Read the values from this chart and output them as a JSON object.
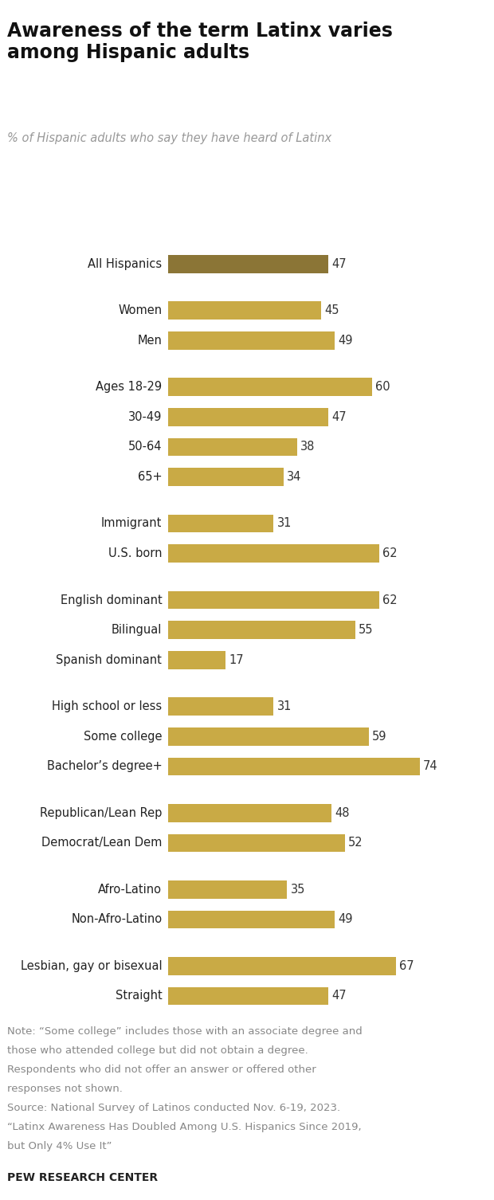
{
  "title": "Awareness of the term Latinx varies\namong Hispanic adults",
  "subtitle": "% of Hispanic adults who say they have heard of Latinx",
  "categories": [
    "All Hispanics",
    "Women",
    "Men",
    "Ages 18-29",
    "30-49",
    "50-64",
    "65+",
    "Immigrant",
    "U.S. born",
    "English dominant",
    "Bilingual",
    "Spanish dominant",
    "High school or less",
    "Some college",
    "Bachelor’s degree+",
    "Republican/Lean Rep",
    "Democrat/Lean Dem",
    "Afro-Latino",
    "Non-Afro-Latino",
    "Lesbian, gay or bisexual",
    "Straight"
  ],
  "values": [
    47,
    45,
    49,
    60,
    47,
    38,
    34,
    31,
    62,
    62,
    55,
    17,
    31,
    59,
    74,
    48,
    52,
    35,
    49,
    67,
    47
  ],
  "bar_color_dark": "#8B7536",
  "bar_color_light": "#C9AA45",
  "groups": [
    [
      0
    ],
    [
      1,
      2
    ],
    [
      3,
      4,
      5,
      6
    ],
    [
      7,
      8
    ],
    [
      9,
      10,
      11
    ],
    [
      12,
      13,
      14
    ],
    [
      15,
      16
    ],
    [
      17,
      18
    ],
    [
      19,
      20
    ]
  ],
  "note_line1": "Note: “Some college” includes those with an associate degree and",
  "note_line2": "those who attended college but did not obtain a degree.",
  "note_line3": "Respondents who did not offer an answer or offered other",
  "note_line4": "responses not shown.",
  "note_line5": "Source: National Survey of Latinos conducted Nov. 6-19, 2023.",
  "note_line6": "“Latinx Awareness Has Doubled Among U.S. Hispanics Since 2019,",
  "note_line7": "but Only 4% Use It”",
  "source_label": "PEW RESEARCH CENTER",
  "background_color": "#ffffff",
  "bar_height": 0.6,
  "xlim_max": 82,
  "title_fontsize": 17,
  "subtitle_fontsize": 10.5,
  "label_fontsize": 10.5,
  "value_fontsize": 10.5,
  "note_fontsize": 9.5
}
